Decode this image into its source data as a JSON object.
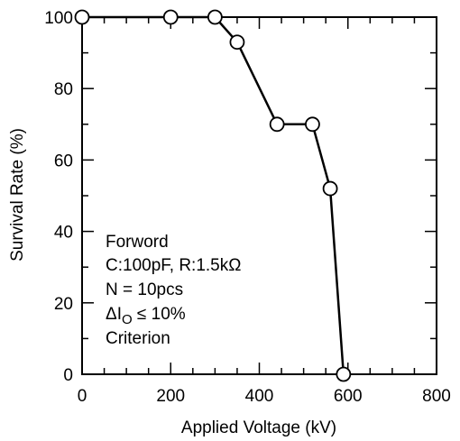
{
  "chart_data": {
    "type": "line",
    "xlabel": "Applied Voltage  (kV)",
    "ylabel": "Survival Rate  (%)",
    "xlim": [
      0,
      800
    ],
    "ylim": [
      0,
      100
    ],
    "x_ticks": [
      0,
      200,
      400,
      600,
      800
    ],
    "y_ticks": [
      0,
      20,
      40,
      60,
      80,
      100
    ],
    "x_tick_labels": [
      "0",
      "200",
      "400",
      "600",
      "800"
    ],
    "y_tick_labels": [
      "0",
      "20",
      "40",
      "60",
      "80",
      "100"
    ],
    "x_minor_step": 50,
    "y_minor_step": 10,
    "grid": false,
    "marker": "open-circle",
    "series": [
      {
        "points": [
          {
            "x": 0,
            "y": 100
          },
          {
            "x": 200,
            "y": 100
          },
          {
            "x": 300,
            "y": 100
          },
          {
            "x": 350,
            "y": 93
          },
          {
            "x": 440,
            "y": 70
          },
          {
            "x": 520,
            "y": 70
          },
          {
            "x": 560,
            "y": 52
          },
          {
            "x": 590,
            "y": 0
          }
        ]
      }
    ],
    "annotation": {
      "line1": "Forword",
      "line2": "C:100pF, R:1.5kΩ",
      "line3": "N = 10pcs",
      "line4_prefix": "ΔI",
      "line4_sub": "O",
      "line4_suffix": " ≤ 10%",
      "line5": "Criterion"
    }
  }
}
